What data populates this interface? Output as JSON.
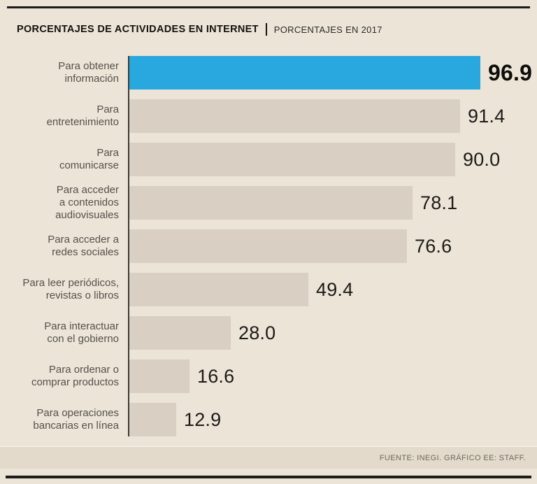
{
  "header": {
    "title": "PORCENTAJES DE ACTIVIDADES EN INTERNET",
    "separator": "|",
    "subtitle": "PORCENTAJES EN 2017"
  },
  "footer": {
    "source": "FUENTE: INEGI.  GRÁFICO EE: STAFF."
  },
  "colors": {
    "background": "#ece4d7",
    "bar": "#d9cfc2",
    "highlight": "#29a8e0",
    "rule": "#1d1c1a",
    "axis": "#3c3a36"
  },
  "chart_data": {
    "type": "bar",
    "orientation": "horizontal",
    "title": "PORCENTAJES DE ACTIVIDADES EN INTERNET",
    "subtitle": "PORCENTAJES EN 2017",
    "unit": "percent",
    "xlim": [
      0,
      100
    ],
    "grid": false,
    "legend": false,
    "source": "FUENTE: INEGI.  GRÁFICO EE: STAFF.",
    "categories": [
      "Para obtener información",
      "Para entretenimiento",
      "Para comunicarse",
      "Para acceder a contenidos audiovisuales",
      "Para acceder a redes sociales",
      "Para leer periódicos, revistas o libros",
      "Para interactuar con el gobierno",
      "Para ordenar o comprar productos",
      "Para operaciones bancarias en línea"
    ],
    "values": [
      96.9,
      91.4,
      90.0,
      78.1,
      76.6,
      49.4,
      28.0,
      16.6,
      12.9
    ],
    "rows": [
      {
        "label": "Para obtener\ninformación",
        "value": 96.9,
        "display": "96.9",
        "highlight": true
      },
      {
        "label": "Para\nentretenimiento",
        "value": 91.4,
        "display": "91.4",
        "highlight": false
      },
      {
        "label": "Para\ncomunicarse",
        "value": 90.0,
        "display": "90.0",
        "highlight": false
      },
      {
        "label": "Para acceder\na contenidos\naudiovisuales",
        "value": 78.1,
        "display": "78.1",
        "highlight": false
      },
      {
        "label": "Para acceder a\nredes sociales",
        "value": 76.6,
        "display": "76.6",
        "highlight": false
      },
      {
        "label": "Para leer periódicos,\nrevistas o libros",
        "value": 49.4,
        "display": "49.4",
        "highlight": false
      },
      {
        "label": "Para interactuar\ncon el gobierno",
        "value": 28.0,
        "display": "28.0",
        "highlight": false
      },
      {
        "label": "Para ordenar o\ncomprar productos",
        "value": 16.6,
        "display": "16.6",
        "highlight": false
      },
      {
        "label": "Para operaciones\nbancarias en línea",
        "value": 12.9,
        "display": "12.9",
        "highlight": false
      }
    ]
  }
}
